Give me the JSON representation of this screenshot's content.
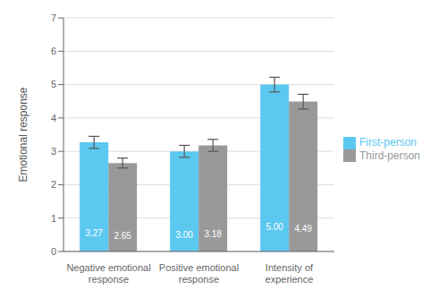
{
  "chart_data": {
    "type": "bar",
    "categories": [
      "Negative emotional response",
      "Positive emotional response",
      "Intensity of experience"
    ],
    "series": [
      {
        "name": "First-person",
        "color": "#5BC8F0",
        "values": [
          3.27,
          3.0,
          5.0
        ],
        "value_labels": [
          "3.27",
          "3.00",
          "5.00"
        ],
        "errors": [
          0.18,
          0.18,
          0.22
        ]
      },
      {
        "name": "Third-person",
        "color": "#999999",
        "values": [
          2.65,
          3.18,
          4.49
        ],
        "value_labels": [
          "2.65",
          "3.18",
          "4.49"
        ],
        "errors": [
          0.15,
          0.18,
          0.22
        ]
      }
    ],
    "ylabel": "Emotional response",
    "ylim": [
      0,
      7
    ],
    "yticks": [
      0,
      1,
      2,
      3,
      4,
      5,
      6,
      7
    ],
    "grid": true,
    "legend": "right",
    "data_labels": true
  }
}
